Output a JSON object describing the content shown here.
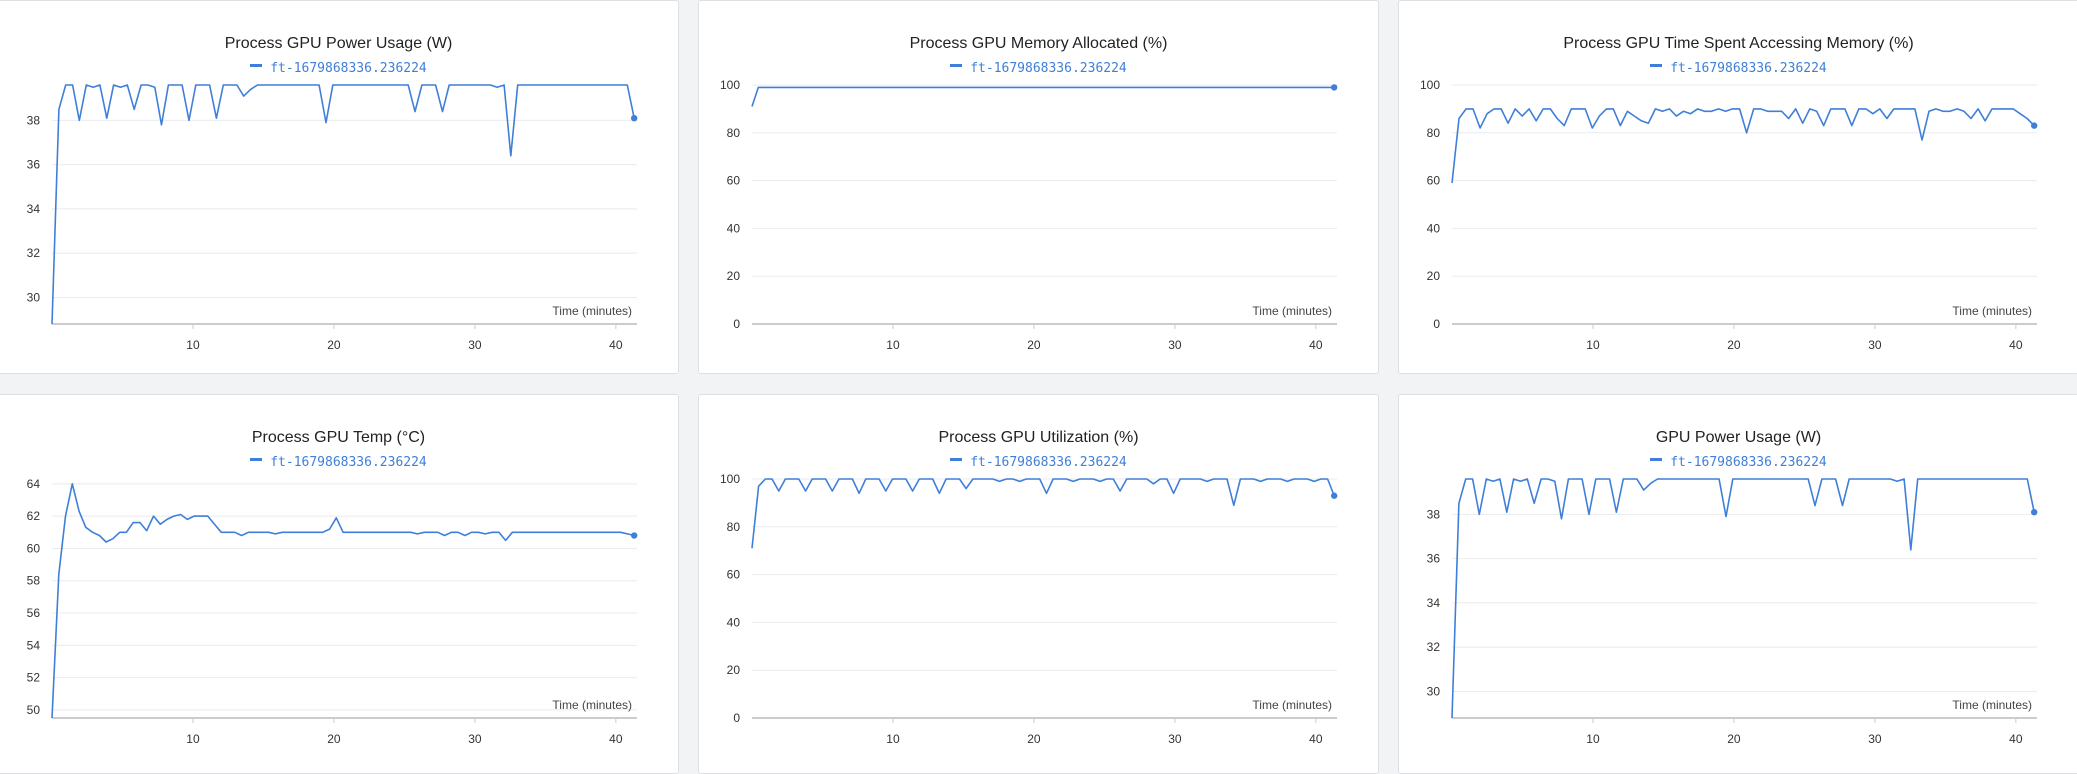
{
  "colors": {
    "series": "#3f7fd9",
    "grid": "#e9ebee",
    "axis": "#c9ccd1",
    "panel_bg": "#ffffff",
    "page_bg": "#f2f3f5"
  },
  "chart_data": [
    {
      "type": "line",
      "title": "Process GPU Power Usage (W)",
      "xlabel": "Time (minutes)",
      "ylabel": "",
      "xlim": [
        0,
        41.5
      ],
      "ylim": [
        28.8,
        39.6
      ],
      "yticks": [
        30,
        32,
        34,
        36,
        38
      ],
      "xticks": [
        10,
        20,
        30,
        40
      ],
      "series": [
        {
          "name": "ft-1679868336.236224",
          "preset": "power"
        }
      ]
    },
    {
      "type": "line",
      "title": "Process GPU Memory Allocated (%)",
      "xlabel": "Time (minutes)",
      "ylabel": "",
      "xlim": [
        0,
        41.5
      ],
      "ylim": [
        0,
        100
      ],
      "yticks": [
        0,
        20,
        40,
        60,
        80,
        100
      ],
      "xticks": [
        10,
        20,
        30,
        40
      ],
      "series": [
        {
          "name": "ft-1679868336.236224",
          "preset": "memalloc"
        }
      ]
    },
    {
      "type": "line",
      "title": "Process GPU Time Spent Accessing Memory (%)",
      "xlabel": "Time (minutes)",
      "ylabel": "",
      "xlim": [
        0,
        41.5
      ],
      "ylim": [
        0,
        100
      ],
      "yticks": [
        0,
        20,
        40,
        60,
        80,
        100
      ],
      "xticks": [
        10,
        20,
        30,
        40
      ],
      "series": [
        {
          "name": "ft-1679868336.236224",
          "preset": "memaccess"
        }
      ]
    },
    {
      "type": "line",
      "title": "Process GPU Temp (°C)",
      "xlabel": "Time (minutes)",
      "ylabel": "",
      "xlim": [
        0,
        41.5
      ],
      "ylim": [
        49.5,
        64.3
      ],
      "yticks": [
        50,
        52,
        54,
        56,
        58,
        60,
        62,
        64
      ],
      "xticks": [
        10,
        20,
        30,
        40
      ],
      "series": [
        {
          "name": "ft-1679868336.236224",
          "preset": "temp"
        }
      ]
    },
    {
      "type": "line",
      "title": "Process GPU Utilization (%)",
      "xlabel": "Time (minutes)",
      "ylabel": "",
      "xlim": [
        0,
        41.5
      ],
      "ylim": [
        0,
        100
      ],
      "yticks": [
        0,
        20,
        40,
        60,
        80,
        100
      ],
      "xticks": [
        10,
        20,
        30,
        40
      ],
      "series": [
        {
          "name": "ft-1679868336.236224",
          "preset": "util"
        }
      ]
    },
    {
      "type": "line",
      "title": "GPU Power Usage (W)",
      "xlabel": "Time (minutes)",
      "ylabel": "",
      "xlim": [
        0,
        41.5
      ],
      "ylim": [
        28.8,
        39.6
      ],
      "yticks": [
        30,
        32,
        34,
        36,
        38
      ],
      "xticks": [
        10,
        20,
        30,
        40
      ],
      "series": [
        {
          "name": "ft-1679868336.236224",
          "preset": "power"
        }
      ]
    }
  ]
}
